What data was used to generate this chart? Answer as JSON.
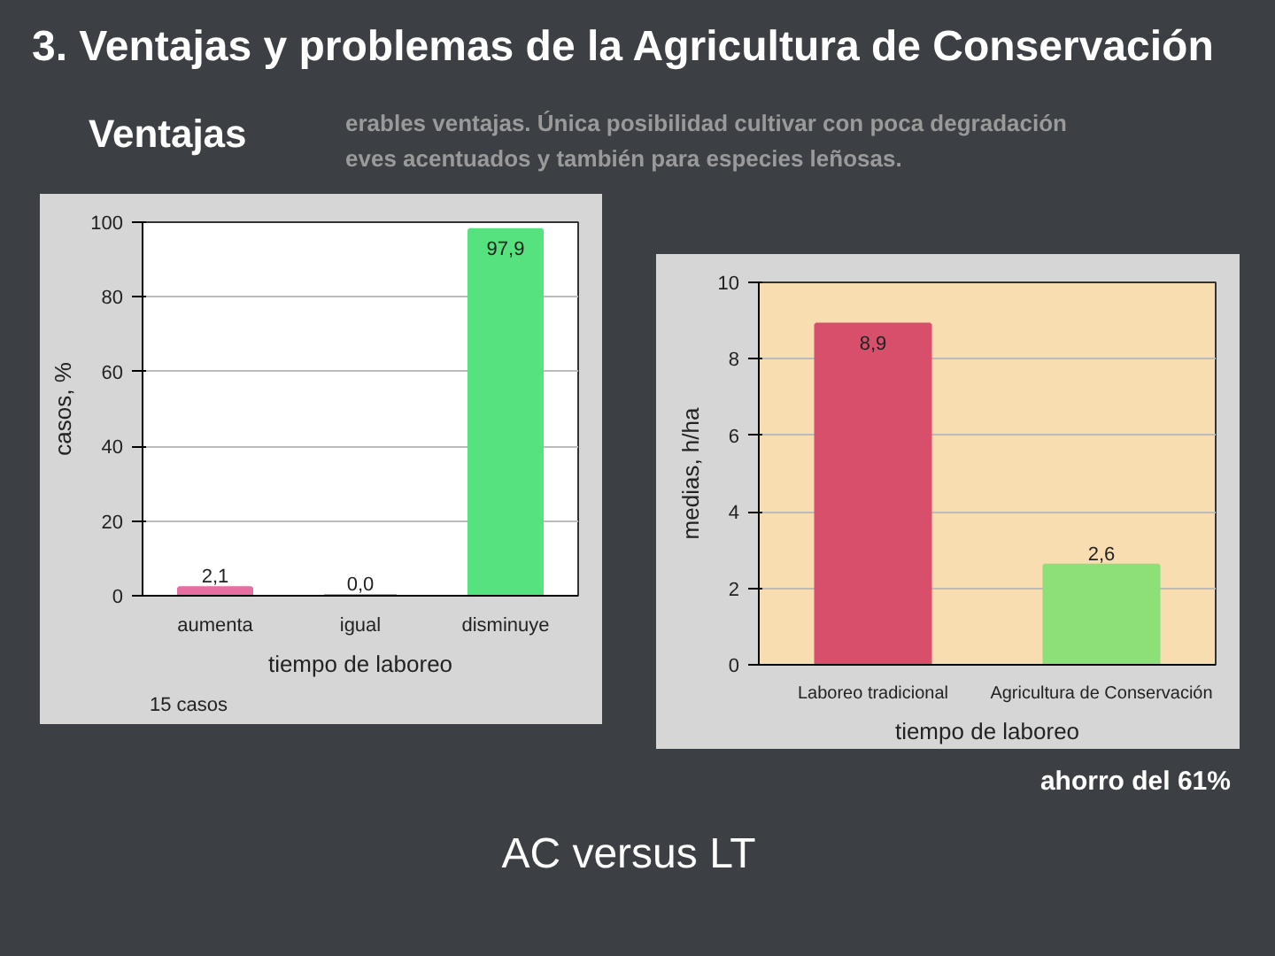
{
  "chart_data": [
    {
      "type": "bar",
      "title": "3. Ventajas y problemas de la Agricultura de Conservación",
      "annotations": [
        "Ventajas",
        "erables ventajas. Única posibilidad cultivar con poca degradación",
        "eves acentuados y también para especies leñosas.",
        "15 casos"
      ],
      "categories": [
        "aumenta",
        "igual",
        "disminuye"
      ],
      "values": [
        2.1,
        0.0,
        97.9
      ],
      "colors": [
        "#e66ea0",
        "#d6b631",
        "#55e27f"
      ],
      "value_labels": [
        "2,1",
        "0,0",
        "97,9"
      ],
      "ylabel": "casos, %",
      "xlabel": "tiempo de laboreo",
      "ylim": [
        0,
        100
      ],
      "yticks": [
        0,
        20,
        40,
        60,
        80,
        100
      ],
      "grid": "y"
    },
    {
      "type": "bar",
      "categories": [
        "Laboreo tradicional",
        "Agricultura de Conservación"
      ],
      "values": [
        8.9,
        2.6
      ],
      "colors": [
        "#d84f6c",
        "#8ddf78"
      ],
      "value_labels": [
        "8,9",
        "2,6"
      ],
      "ylabel": "medias, h/ha",
      "xlabel": "tiempo de laboreo",
      "ylim": [
        0,
        10
      ],
      "yticks": [
        0,
        2,
        4,
        6,
        8,
        10
      ],
      "grid": "y",
      "annotations": [
        "ahorro del 61%",
        "AC versus LT"
      ]
    }
  ]
}
